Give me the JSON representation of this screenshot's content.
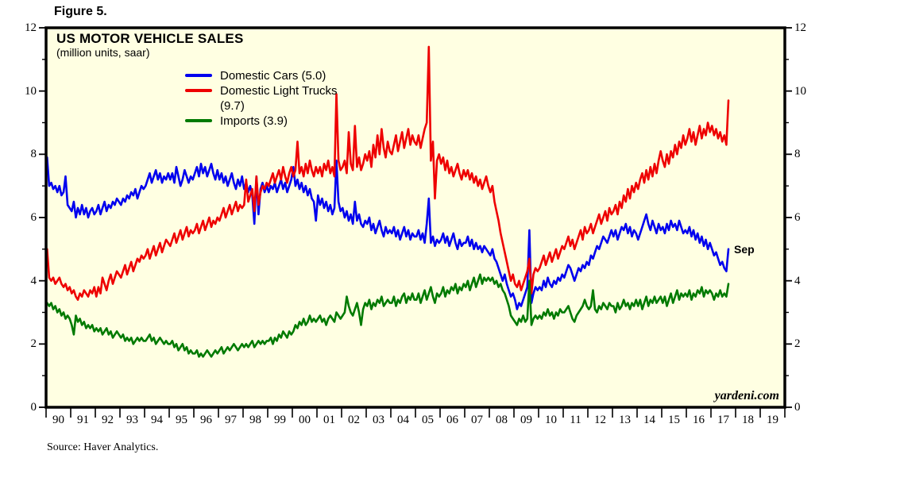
{
  "figure_label": "Figure 5.",
  "chart": {
    "title": "US MOTOR VEHICLE SALES",
    "subtitle": "(million units, saar)",
    "annotation_last_month": "Sep",
    "watermark": "yardeni.com",
    "source": "Source: Haver Analytics.",
    "colors": {
      "plot_background": "#FFFFE2",
      "frame": "#000000",
      "domestic_cars": "#0000EE",
      "domestic_light_trucks": "#EE0000",
      "imports": "#007A00"
    }
  },
  "chart_data": {
    "type": "line",
    "title": "US MOTOR VEHICLE SALES",
    "subtitle": "(million units, saar)",
    "ylabel": "million units, saar",
    "ylim": [
      0,
      12
    ],
    "y_major_ticks": [
      0,
      2,
      4,
      6,
      8,
      10,
      12
    ],
    "y_minor_ticks": [
      1,
      3,
      5,
      7,
      9,
      11
    ],
    "x_start_year": 1990,
    "x_end_year": 2020,
    "frequency": "monthly",
    "last_point": "Sep 2017",
    "x_ticklabels": [
      "90",
      "91",
      "92",
      "93",
      "94",
      "95",
      "96",
      "97",
      "98",
      "99",
      "00",
      "01",
      "02",
      "03",
      "04",
      "05",
      "06",
      "07",
      "08",
      "09",
      "10",
      "11",
      "12",
      "13",
      "14",
      "15",
      "16",
      "17",
      "18",
      "19"
    ],
    "legend_position": "top-left-inside",
    "grid": false,
    "series": [
      {
        "name": "Domestic Cars (5.0)",
        "latest_value": 5.0,
        "color": "#0000EE",
        "values": [
          7.9,
          7.0,
          7.1,
          6.9,
          7.0,
          6.8,
          7.0,
          6.7,
          6.8,
          7.3,
          6.4,
          6.3,
          6.2,
          6.5,
          6.0,
          6.3,
          6.1,
          6.4,
          6.1,
          6.3,
          6.0,
          6.2,
          6.3,
          6.1,
          6.2,
          6.4,
          6.1,
          6.3,
          6.5,
          6.2,
          6.4,
          6.3,
          6.5,
          6.4,
          6.6,
          6.5,
          6.4,
          6.6,
          6.5,
          6.7,
          6.6,
          6.8,
          6.7,
          6.9,
          6.6,
          6.8,
          7.0,
          6.9,
          7.0,
          7.2,
          7.4,
          7.1,
          7.3,
          7.5,
          7.2,
          7.4,
          7.1,
          7.3,
          7.2,
          7.4,
          7.2,
          7.4,
          7.1,
          7.6,
          7.3,
          7.0,
          7.2,
          7.5,
          7.3,
          7.1,
          7.3,
          7.2,
          7.4,
          7.6,
          7.3,
          7.7,
          7.4,
          7.6,
          7.3,
          7.5,
          7.7,
          7.4,
          7.2,
          7.5,
          7.2,
          7.4,
          7.1,
          7.3,
          7.0,
          7.2,
          7.4,
          7.1,
          6.9,
          7.2,
          7.0,
          7.3,
          6.9,
          7.1,
          6.8,
          7.0,
          6.7,
          5.8,
          7.3,
          6.1,
          6.9,
          7.1,
          6.8,
          7.0,
          6.8,
          7.0,
          6.9,
          7.1,
          6.8,
          7.0,
          7.2,
          6.9,
          7.1,
          6.8,
          7.0,
          7.2,
          7.6,
          7.0,
          7.2,
          6.9,
          7.1,
          6.8,
          7.0,
          6.7,
          6.9,
          6.6,
          6.5,
          5.9,
          6.7,
          6.4,
          6.6,
          6.3,
          6.5,
          6.2,
          6.4,
          6.1,
          6.3,
          7.8,
          6.5,
          6.2,
          6.3,
          6.0,
          6.2,
          5.9,
          6.1,
          5.8,
          6.5,
          5.9,
          6.1,
          5.8,
          5.7,
          5.9,
          5.8,
          6.0,
          5.6,
          5.8,
          5.5,
          5.7,
          5.9,
          5.6,
          5.4,
          5.7,
          5.5,
          5.6,
          5.5,
          5.7,
          5.4,
          5.6,
          5.3,
          5.5,
          5.7,
          5.4,
          5.6,
          5.3,
          5.5,
          5.4,
          5.4,
          5.6,
          5.3,
          5.5,
          5.2,
          5.8,
          6.6,
          5.2,
          5.4,
          5.1,
          5.3,
          5.2,
          5.3,
          5.5,
          5.2,
          5.4,
          5.1,
          5.3,
          5.5,
          5.2,
          5.0,
          5.3,
          5.1,
          5.2,
          5.2,
          5.4,
          5.1,
          5.3,
          5.0,
          5.2,
          5.0,
          5.1,
          4.9,
          5.1,
          5.0,
          4.9,
          4.8,
          5.0,
          4.7,
          4.6,
          4.4,
          4.2,
          4.0,
          4.2,
          3.9,
          3.7,
          3.5,
          3.6,
          3.4,
          3.1,
          3.3,
          3.2,
          3.4,
          3.6,
          3.8,
          5.6,
          3.3,
          3.6,
          3.8,
          3.7,
          3.8,
          3.7,
          4.0,
          3.8,
          4.1,
          3.9,
          3.8,
          4.0,
          3.9,
          4.1,
          4.0,
          4.2,
          4.1,
          4.3,
          4.5,
          4.4,
          4.2,
          4.0,
          4.2,
          4.4,
          4.3,
          4.5,
          4.4,
          4.6,
          4.5,
          4.8,
          4.7,
          4.9,
          5.1,
          5.0,
          5.2,
          5.4,
          5.3,
          5.2,
          5.4,
          5.6,
          5.4,
          5.6,
          5.3,
          5.5,
          5.7,
          5.6,
          5.8,
          5.5,
          5.7,
          5.4,
          5.6,
          5.5,
          5.3,
          5.5,
          5.7,
          5.9,
          6.1,
          5.8,
          5.6,
          5.9,
          5.7,
          5.5,
          5.8,
          5.6,
          5.7,
          5.5,
          5.8,
          5.6,
          5.9,
          5.7,
          5.8,
          5.6,
          5.9,
          5.7,
          5.5,
          5.6,
          5.5,
          5.7,
          5.4,
          5.6,
          5.3,
          5.5,
          5.2,
          5.4,
          5.1,
          5.3,
          5.0,
          5.2,
          5.0,
          4.8,
          4.9,
          4.7,
          4.5,
          4.6,
          4.4,
          4.3,
          5.0
        ]
      },
      {
        "name": "Domestic Light Trucks (9.7)",
        "latest_value": 9.7,
        "color": "#EE0000",
        "values": [
          5.0,
          4.1,
          4.0,
          4.1,
          3.9,
          4.0,
          4.1,
          3.9,
          3.8,
          3.9,
          3.7,
          3.8,
          3.6,
          3.7,
          3.5,
          3.4,
          3.6,
          3.5,
          3.7,
          3.6,
          3.5,
          3.7,
          3.6,
          3.8,
          3.5,
          3.8,
          3.6,
          4.1,
          3.9,
          3.7,
          4.0,
          4.2,
          3.9,
          4.1,
          4.3,
          4.2,
          4.1,
          4.3,
          4.5,
          4.2,
          4.4,
          4.6,
          4.3,
          4.5,
          4.7,
          4.6,
          4.8,
          4.7,
          4.8,
          5.0,
          4.7,
          4.9,
          5.1,
          4.8,
          5.0,
          5.2,
          4.9,
          5.1,
          5.3,
          5.2,
          5.1,
          5.3,
          5.5,
          5.2,
          5.4,
          5.6,
          5.3,
          5.5,
          5.7,
          5.4,
          5.6,
          5.5,
          5.6,
          5.8,
          5.5,
          5.7,
          5.9,
          5.6,
          5.8,
          6.0,
          5.7,
          5.9,
          5.8,
          6.0,
          5.9,
          6.1,
          6.3,
          6.0,
          6.2,
          6.4,
          6.1,
          6.3,
          6.5,
          6.2,
          6.4,
          6.3,
          6.4,
          7.2,
          6.5,
          6.7,
          6.9,
          6.2,
          7.3,
          6.4,
          6.8,
          7.0,
          6.9,
          7.1,
          7.0,
          7.2,
          7.4,
          7.1,
          7.3,
          7.5,
          7.2,
          7.6,
          7.3,
          7.1,
          7.4,
          7.6,
          7.3,
          7.5,
          8.4,
          7.4,
          7.6,
          7.3,
          7.7,
          7.4,
          7.8,
          7.5,
          7.3,
          7.6,
          7.4,
          7.6,
          7.3,
          7.7,
          7.5,
          7.8,
          7.4,
          7.6,
          7.3,
          9.9,
          7.8,
          7.5,
          7.6,
          7.8,
          7.4,
          8.7,
          7.7,
          7.5,
          8.9,
          7.6,
          7.9,
          7.5,
          7.7,
          8.0,
          7.8,
          8.1,
          7.6,
          8.3,
          7.9,
          8.6,
          8.0,
          8.8,
          8.2,
          7.9,
          8.4,
          8.1,
          8.0,
          8.3,
          8.6,
          8.1,
          8.4,
          8.7,
          8.2,
          8.5,
          8.8,
          8.3,
          8.6,
          8.4,
          8.3,
          8.6,
          8.2,
          8.5,
          8.8,
          9.0,
          11.4,
          7.8,
          8.4,
          6.6,
          7.8,
          8.0,
          7.7,
          7.9,
          7.5,
          7.8,
          7.4,
          7.6,
          7.3,
          7.5,
          7.7,
          7.4,
          7.2,
          7.5,
          7.3,
          7.5,
          7.2,
          7.4,
          7.1,
          7.3,
          7.0,
          7.2,
          6.9,
          7.1,
          7.3,
          7.0,
          6.8,
          7.0,
          6.5,
          6.2,
          5.9,
          5.5,
          5.2,
          4.9,
          4.6,
          4.3,
          4.0,
          4.2,
          3.9,
          3.8,
          4.0,
          3.7,
          3.9,
          4.1,
          4.3,
          4.7,
          3.6,
          4.2,
          4.4,
          4.3,
          4.4,
          4.6,
          4.8,
          4.5,
          4.7,
          4.9,
          4.6,
          4.8,
          5.0,
          4.7,
          4.9,
          5.1,
          5.0,
          5.2,
          5.4,
          5.1,
          5.3,
          5.0,
          5.2,
          5.4,
          5.6,
          5.3,
          5.7,
          5.5,
          5.6,
          5.8,
          5.5,
          5.7,
          5.9,
          6.1,
          5.8,
          6.0,
          6.2,
          5.9,
          6.3,
          6.1,
          6.2,
          6.4,
          6.1,
          6.5,
          6.3,
          6.7,
          6.5,
          6.9,
          6.6,
          7.0,
          6.8,
          7.1,
          6.9,
          7.2,
          7.4,
          7.1,
          7.5,
          7.2,
          7.6,
          7.3,
          7.7,
          7.4,
          7.8,
          8.1,
          7.8,
          7.6,
          8.0,
          7.7,
          8.1,
          7.9,
          8.3,
          8.0,
          8.4,
          8.2,
          8.6,
          8.3,
          8.5,
          8.8,
          8.4,
          8.7,
          8.3,
          8.6,
          8.9,
          8.5,
          8.8,
          8.6,
          9.0,
          8.7,
          8.9,
          8.6,
          8.8,
          8.5,
          8.7,
          8.4,
          8.6,
          8.3,
          9.7
        ]
      },
      {
        "name": "Imports (3.9)",
        "latest_value": 3.9,
        "color": "#007A00",
        "values": [
          3.3,
          3.2,
          3.3,
          3.1,
          3.2,
          3.0,
          3.1,
          2.9,
          3.0,
          2.8,
          2.9,
          2.8,
          2.6,
          2.3,
          2.9,
          2.7,
          2.8,
          2.6,
          2.7,
          2.5,
          2.6,
          2.5,
          2.6,
          2.4,
          2.5,
          2.4,
          2.5,
          2.3,
          2.4,
          2.5,
          2.3,
          2.4,
          2.2,
          2.3,
          2.4,
          2.3,
          2.2,
          2.3,
          2.1,
          2.2,
          2.1,
          2.2,
          2.0,
          2.1,
          2.2,
          2.1,
          2.2,
          2.1,
          2.1,
          2.2,
          2.3,
          2.1,
          2.2,
          2.0,
          2.1,
          2.2,
          2.1,
          2.0,
          2.1,
          2.0,
          2.0,
          2.1,
          1.9,
          2.0,
          1.8,
          1.9,
          2.0,
          1.8,
          1.9,
          1.7,
          1.8,
          1.7,
          1.7,
          1.8,
          1.6,
          1.7,
          1.6,
          1.7,
          1.8,
          1.7,
          1.6,
          1.7,
          1.8,
          1.7,
          1.8,
          1.9,
          1.7,
          1.8,
          1.9,
          1.8,
          1.9,
          2.0,
          1.9,
          1.8,
          1.9,
          2.0,
          1.9,
          2.0,
          1.9,
          2.0,
          2.1,
          1.9,
          2.0,
          2.1,
          2.0,
          2.1,
          2.0,
          2.1,
          2.1,
          2.2,
          2.0,
          2.2,
          2.1,
          2.3,
          2.2,
          2.4,
          2.3,
          2.2,
          2.4,
          2.3,
          2.4,
          2.6,
          2.5,
          2.7,
          2.6,
          2.8,
          2.6,
          2.7,
          2.9,
          2.7,
          2.8,
          2.7,
          2.8,
          2.9,
          2.7,
          2.8,
          2.6,
          2.8,
          2.9,
          2.8,
          2.7,
          3.0,
          2.9,
          2.8,
          2.9,
          3.0,
          3.5,
          3.2,
          3.0,
          2.9,
          3.1,
          3.3,
          3.0,
          2.6,
          3.1,
          3.3,
          3.2,
          3.4,
          3.1,
          3.3,
          3.2,
          3.4,
          3.3,
          3.5,
          3.2,
          3.3,
          3.4,
          3.3,
          3.3,
          3.5,
          3.2,
          3.4,
          3.3,
          3.5,
          3.6,
          3.3,
          3.5,
          3.4,
          3.6,
          3.4,
          3.4,
          3.6,
          3.3,
          3.5,
          3.7,
          3.4,
          3.6,
          3.8,
          3.5,
          3.3,
          3.6,
          3.5,
          3.6,
          3.8,
          3.5,
          3.7,
          3.6,
          3.8,
          3.7,
          3.9,
          3.6,
          3.8,
          3.7,
          3.9,
          3.8,
          4.0,
          3.7,
          3.9,
          4.1,
          3.8,
          4.0,
          4.2,
          3.9,
          4.1,
          4.0,
          4.1,
          4.0,
          4.1,
          3.9,
          4.0,
          3.8,
          3.9,
          3.7,
          3.6,
          3.4,
          3.2,
          2.9,
          2.8,
          2.7,
          2.6,
          2.8,
          2.7,
          2.9,
          2.7,
          2.8,
          4.0,
          2.6,
          2.8,
          2.9,
          2.8,
          2.9,
          2.8,
          3.0,
          2.9,
          3.1,
          2.9,
          3.0,
          2.8,
          3.0,
          2.9,
          3.1,
          3.0,
          3.0,
          3.1,
          3.2,
          3.0,
          2.8,
          2.7,
          2.9,
          3.0,
          3.1,
          3.2,
          3.4,
          3.2,
          3.1,
          3.2,
          3.7,
          3.1,
          3.0,
          3.2,
          3.1,
          3.3,
          3.2,
          3.1,
          3.3,
          3.2,
          3.2,
          3.0,
          3.3,
          3.1,
          3.2,
          3.4,
          3.2,
          3.3,
          3.1,
          3.3,
          3.2,
          3.4,
          3.2,
          3.4,
          3.1,
          3.3,
          3.5,
          3.2,
          3.4,
          3.3,
          3.5,
          3.3,
          3.4,
          3.5,
          3.3,
          3.5,
          3.2,
          3.4,
          3.6,
          3.3,
          3.5,
          3.7,
          3.4,
          3.6,
          3.5,
          3.6,
          3.5,
          3.7,
          3.4,
          3.6,
          3.5,
          3.7,
          3.6,
          3.8,
          3.5,
          3.7,
          3.6,
          3.7,
          3.6,
          3.4,
          3.6,
          3.5,
          3.7,
          3.5,
          3.6,
          3.5,
          3.9
        ]
      }
    ]
  }
}
